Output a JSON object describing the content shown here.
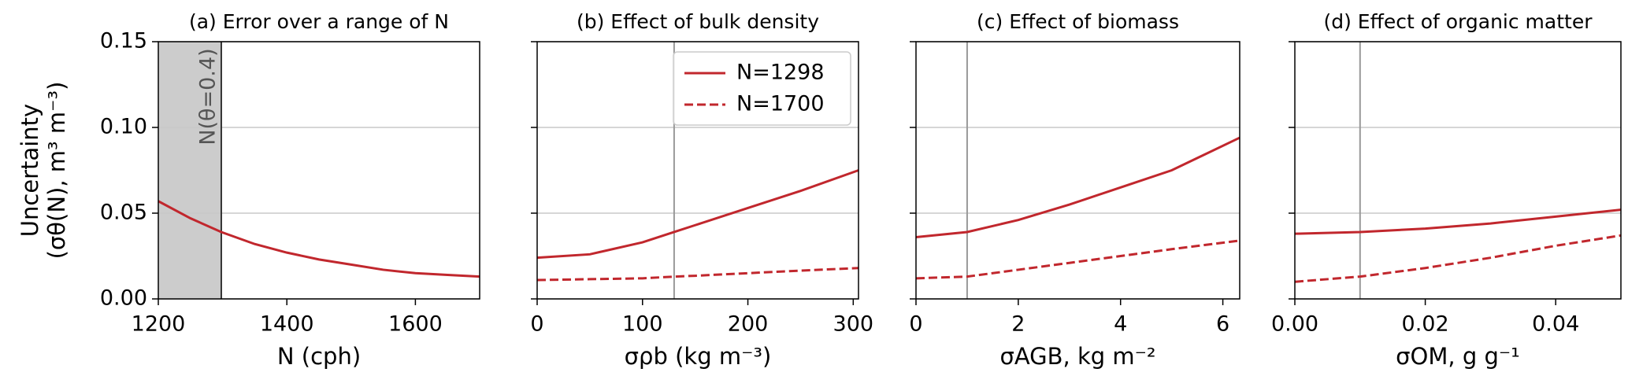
{
  "chart_data": [
    {
      "type": "line",
      "title": "(a) Error over a range of N",
      "xlabel": "N (cph)",
      "ylabel": [
        "Uncertainty",
        "(σθ(N), m³ m⁻³)"
      ],
      "x": [
        1200,
        1250,
        1298,
        1350,
        1400,
        1450,
        1500,
        1550,
        1600,
        1650,
        1700
      ],
      "series": [
        {
          "color": "#c1272d",
          "linestyle": "solid",
          "values": [
            0.057,
            0.047,
            0.039,
            0.032,
            0.027,
            0.023,
            0.02,
            0.017,
            0.015,
            0.014,
            0.013
          ]
        }
      ],
      "xlim": [
        1200,
        1700
      ],
      "xticks": [
        1200,
        1400,
        1600
      ],
      "ylim": [
        0,
        0.15
      ],
      "yticks": [
        {
          "value": 0,
          "label": "0.00"
        },
        {
          "value": 0.05,
          "label": "0.05"
        },
        {
          "value": 0.1,
          "label": "0.10"
        },
        {
          "value": 0.15,
          "label": "0.15"
        }
      ],
      "grid": "y",
      "vline": 1298,
      "vline_color": "#333333",
      "shade": [
        1200,
        1298
      ],
      "annotation": "N(θ=0.4)"
    },
    {
      "type": "line",
      "title": "(b) Effect of bulk density",
      "xlabel": "σρb (kg m⁻³)",
      "x": [
        0,
        50,
        100,
        130,
        150,
        200,
        250,
        305
      ],
      "series": [
        {
          "name": "N=1298",
          "color": "#c1272d",
          "linestyle": "solid",
          "values": [
            0.024,
            0.026,
            0.033,
            0.039,
            0.043,
            0.053,
            0.063,
            0.075
          ]
        },
        {
          "name": "N=1700",
          "color": "#c1272d",
          "linestyle": "dashed",
          "values": [
            0.011,
            0.0115,
            0.012,
            0.013,
            0.0135,
            0.015,
            0.0165,
            0.018
          ]
        }
      ],
      "xlim": [
        0,
        305
      ],
      "xticks": [
        0,
        100,
        200,
        300
      ],
      "ylim": [
        0,
        0.15
      ],
      "yticks": [
        0,
        0.05,
        0.1,
        0.15
      ],
      "grid": "y",
      "vline": 130,
      "vline_color": "#999999",
      "legend": "upper right"
    },
    {
      "type": "line",
      "title": "(c) Effect of biomass",
      "xlabel": "σAGB, kg m⁻²",
      "x": [
        0,
        1,
        2,
        3,
        4,
        5,
        6.33
      ],
      "series": [
        {
          "color": "#c1272d",
          "linestyle": "solid",
          "values": [
            0.036,
            0.039,
            0.046,
            0.055,
            0.065,
            0.075,
            0.094
          ]
        },
        {
          "color": "#c1272d",
          "linestyle": "dashed",
          "values": [
            0.012,
            0.013,
            0.017,
            0.021,
            0.025,
            0.029,
            0.034
          ]
        }
      ],
      "xlim": [
        0,
        6.33
      ],
      "xticks": [
        0,
        2,
        4,
        6
      ],
      "ylim": [
        0,
        0.15
      ],
      "yticks": [
        0,
        0.05,
        0.1,
        0.15
      ],
      "grid": "y",
      "vline": 1,
      "vline_color": "#999999"
    },
    {
      "type": "line",
      "title": "(d) Effect of organic matter",
      "xlabel": "σOM, g g⁻¹",
      "x": [
        0,
        0.01,
        0.02,
        0.03,
        0.04,
        0.05
      ],
      "series": [
        {
          "color": "#c1272d",
          "linestyle": "solid",
          "values": [
            0.038,
            0.039,
            0.041,
            0.044,
            0.048,
            0.052
          ]
        },
        {
          "color": "#c1272d",
          "linestyle": "dashed",
          "values": [
            0.01,
            0.013,
            0.018,
            0.024,
            0.031,
            0.037
          ]
        }
      ],
      "xlim": [
        0,
        0.05
      ],
      "xticks": [
        {
          "value": 0,
          "label": "0.00"
        },
        {
          "value": 0.02,
          "label": "0.02"
        },
        {
          "value": 0.04,
          "label": "0.04"
        }
      ],
      "ylim": [
        0,
        0.15
      ],
      "yticks": [
        0,
        0.05,
        0.1,
        0.15
      ],
      "grid": "y",
      "vline": 0.01,
      "vline_color": "#999999"
    }
  ]
}
